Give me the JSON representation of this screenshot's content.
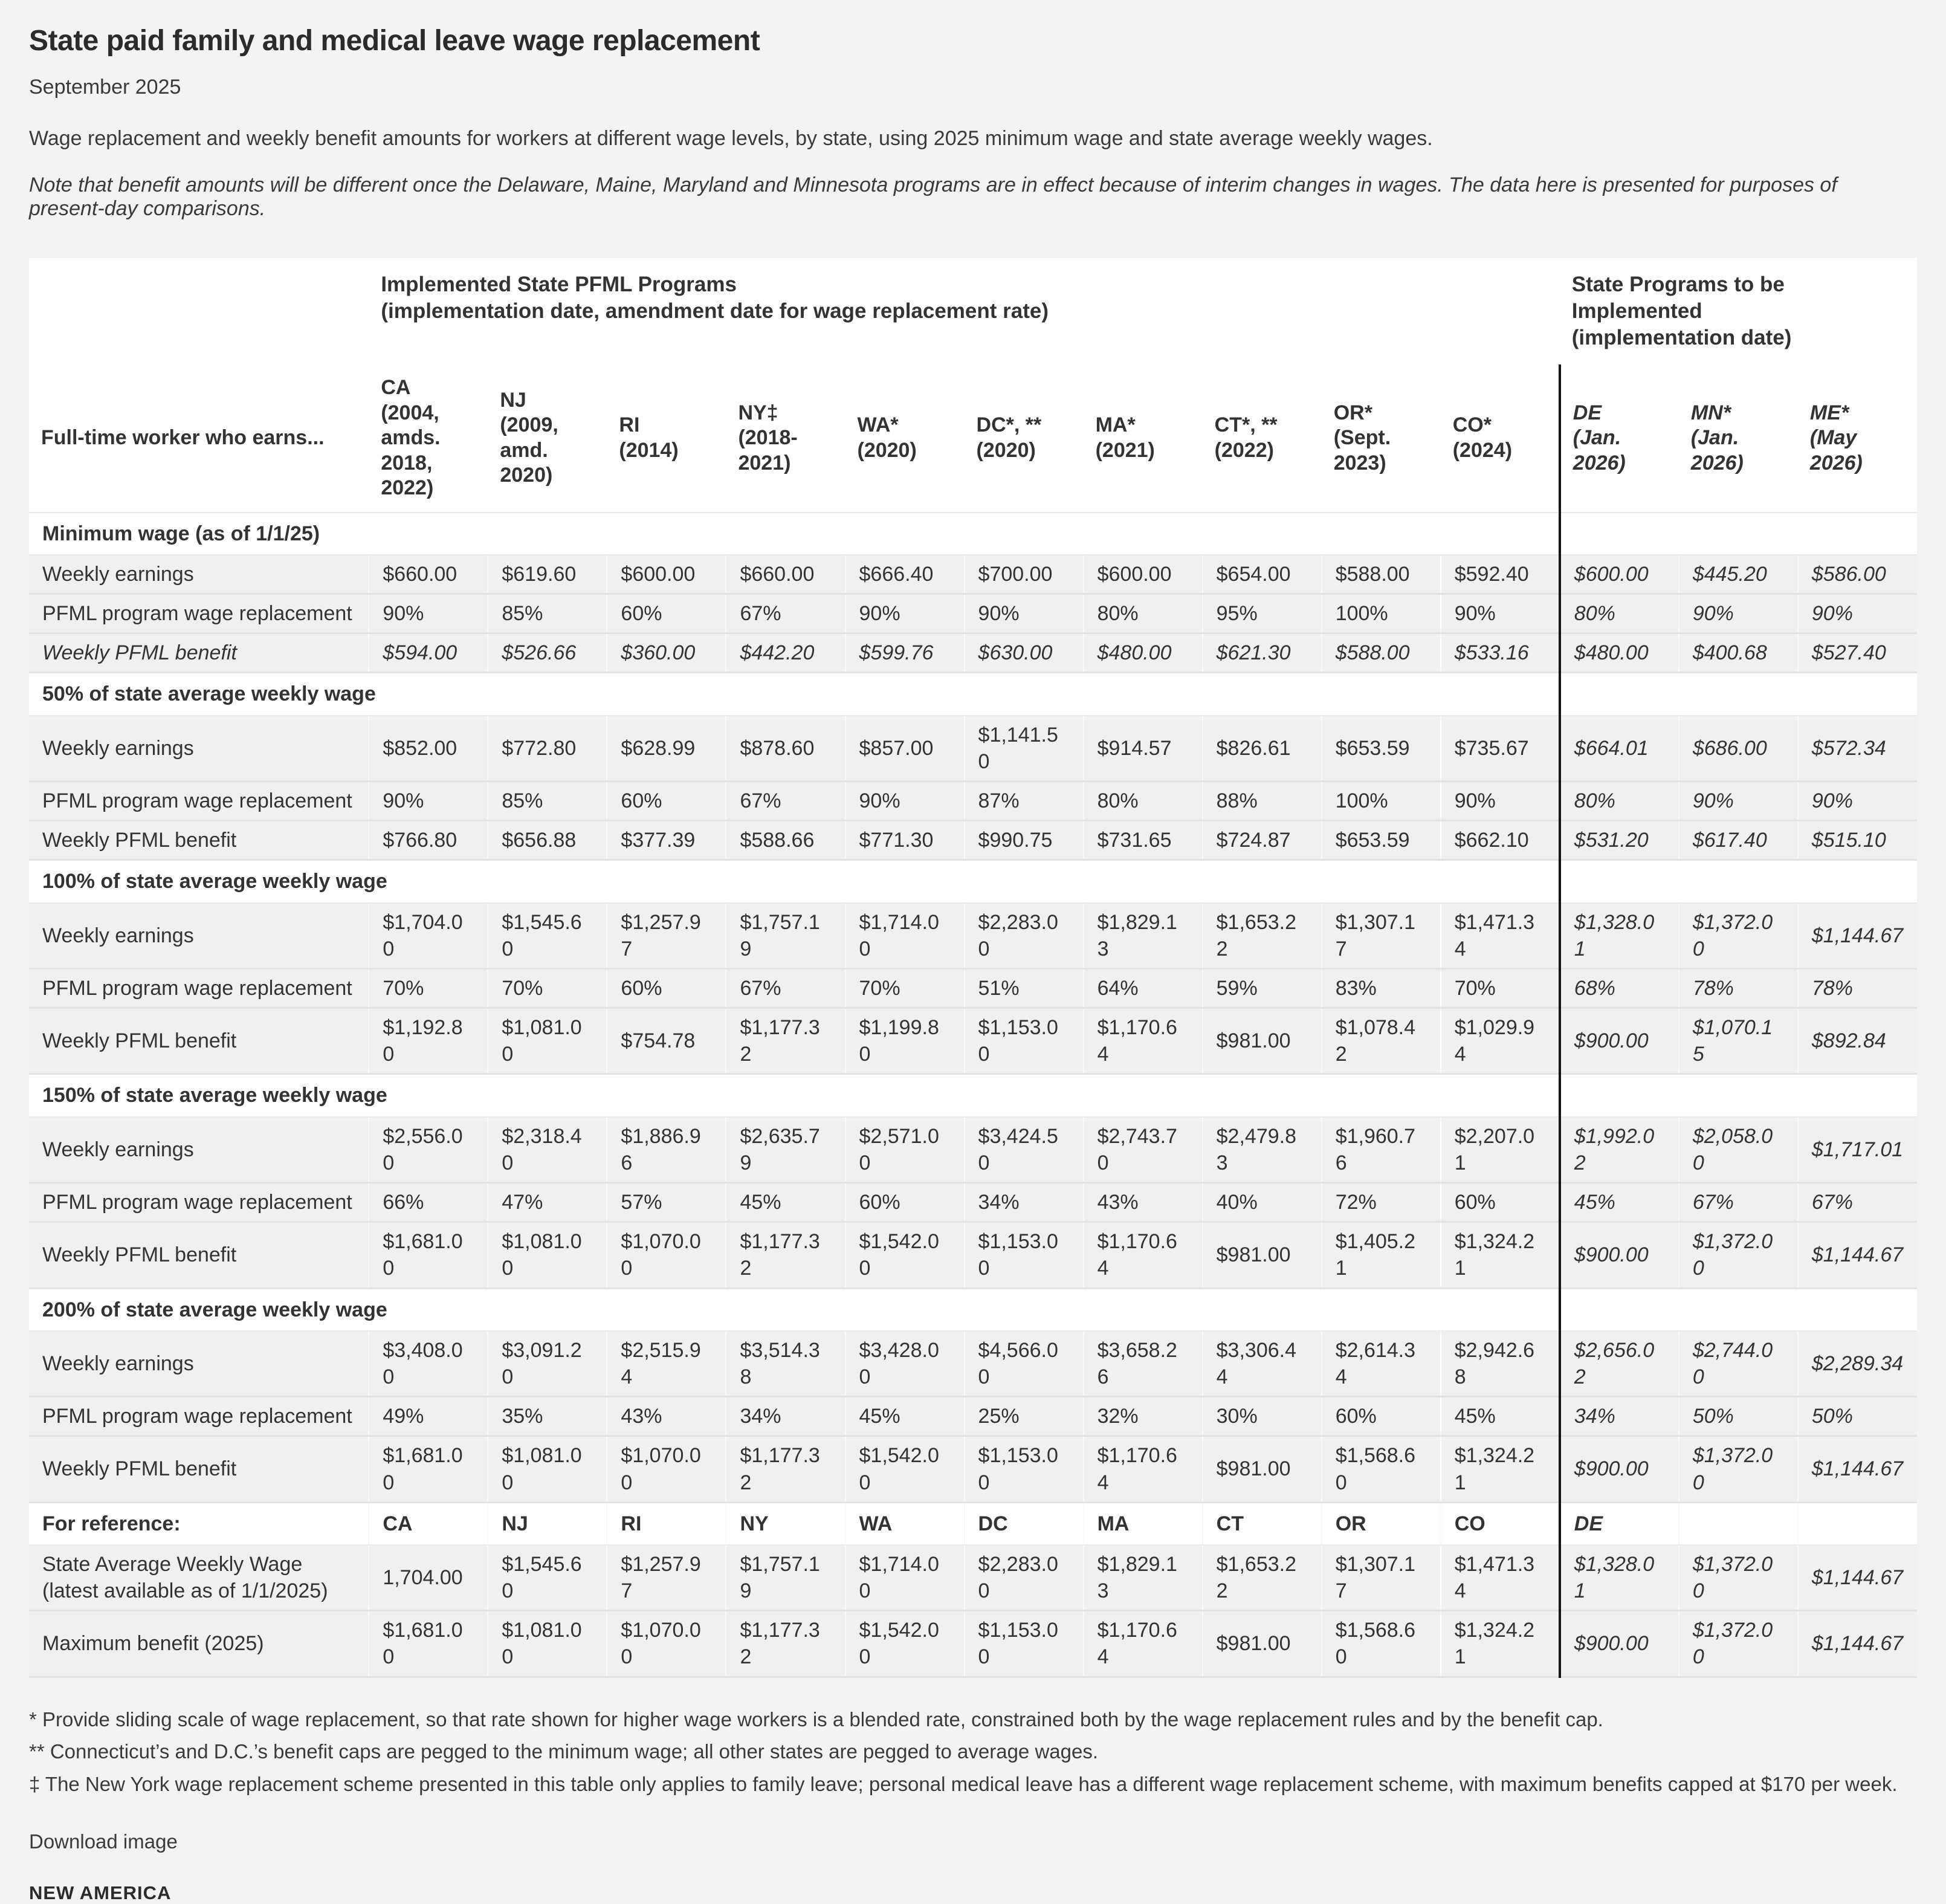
{
  "page": {
    "title": "State paid family and medical leave wage replacement",
    "date": "September 2025",
    "description": "Wage replacement and weekly benefit amounts for workers at different wage levels, by state, using 2025 minimum wage and state average weekly wages.",
    "note": "Note that benefit amounts will be different once the Delaware, Maine, Maryland and Minnesota programs are in effect because of interim changes in wages. The data here is presented for purposes of present-day comparisons.",
    "footnotes": [
      "* Provide sliding scale of wage replacement, so that rate shown for higher wage workers is a blended rate, constrained both by the wage replacement rules and by the benefit cap.",
      "** Connecticut’s and D.C.’s benefit caps are pegged to the minimum wage; all other states are pegged to average wages.",
      "‡ The New York wage replacement scheme presented in this table only applies to family leave; personal medical leave has a different wage replacement scheme, with maximum benefits capped at $170 per week."
    ],
    "download_label": "Download image",
    "brand": "NEW AMERICA"
  },
  "chart_data": {
    "type": "table",
    "title": "State paid family and medical leave wage replacement",
    "group_headers": {
      "implemented": "Implemented State PFML Programs\n(implementation date, amendment date for wage replacement rate)",
      "upcoming": "State Programs to be Implemented\n(implementation date)"
    },
    "row_header": "Full-time worker who earns...",
    "upcoming_start_index": 10,
    "columns": [
      "CA\n(2004, amds. 2018, 2022)",
      "NJ\n(2009, amd. 2020)",
      "RI\n(2014)",
      "NY‡\n(2018-2021)",
      "WA*\n(2020)",
      "DC*, **\n(2020)",
      "MA*\n(2021)",
      "CT*, **\n(2022)",
      "OR*\n(Sept. 2023)",
      "CO*\n(2024)",
      "DE\n(Jan. 2026)",
      "MN*\n(Jan. 2026)",
      "ME*\n(May 2026)"
    ],
    "sections": [
      {
        "title": "Minimum wage (as of 1/1/25)",
        "rows": [
          {
            "label": "Weekly earnings",
            "italic": false,
            "values": [
              "$660.00",
              "$619.60",
              "$600.00",
              "$660.00",
              "$666.40",
              "$700.00",
              "$600.00",
              "$654.00",
              "$588.00",
              "$592.40",
              "$600.00",
              "$445.20",
              "$586.00"
            ]
          },
          {
            "label": "PFML program wage replacement",
            "italic": false,
            "values": [
              "90%",
              "85%",
              "60%",
              "67%",
              "90%",
              "90%",
              "80%",
              "95%",
              "100%",
              "90%",
              "80%",
              "90%",
              "90%"
            ]
          },
          {
            "label": "Weekly PFML benefit",
            "italic": true,
            "values": [
              "$594.00",
              "$526.66",
              "$360.00",
              "$442.20",
              "$599.76",
              "$630.00",
              "$480.00",
              "$621.30",
              "$588.00",
              "$533.16",
              "$480.00",
              "$400.68",
              "$527.40"
            ]
          }
        ]
      },
      {
        "title": "50% of state average weekly wage",
        "rows": [
          {
            "label": "Weekly earnings",
            "italic": false,
            "values": [
              "$852.00",
              "$772.80",
              "$628.99",
              "$878.60",
              "$857.00",
              "$1,141.50",
              "$914.57",
              "$826.61",
              "$653.59",
              "$735.67",
              "$664.01",
              "$686.00",
              "$572.34"
            ]
          },
          {
            "label": "PFML program wage replacement",
            "italic": false,
            "values": [
              "90%",
              "85%",
              "60%",
              "67%",
              "90%",
              "87%",
              "80%",
              "88%",
              "100%",
              "90%",
              "80%",
              "90%",
              "90%"
            ]
          },
          {
            "label": "Weekly PFML benefit",
            "italic": false,
            "values": [
              "$766.80",
              "$656.88",
              "$377.39",
              "$588.66",
              "$771.30",
              "$990.75",
              "$731.65",
              "$724.87",
              "$653.59",
              "$662.10",
              "$531.20",
              "$617.40",
              "$515.10"
            ]
          }
        ]
      },
      {
        "title": "100% of state average weekly wage",
        "rows": [
          {
            "label": "Weekly earnings",
            "italic": false,
            "values": [
              "$1,704.00",
              "$1,545.60",
              "$1,257.97",
              "$1,757.19",
              "$1,714.00",
              "$2,283.00",
              "$1,829.13",
              "$1,653.22",
              "$1,307.17",
              "$1,471.34",
              "$1,328.01",
              "$1,372.00",
              "$1,144.67"
            ]
          },
          {
            "label": "PFML program wage replacement",
            "italic": false,
            "values": [
              "70%",
              "70%",
              "60%",
              "67%",
              "70%",
              "51%",
              "64%",
              "59%",
              "83%",
              "70%",
              "68%",
              "78%",
              "78%"
            ]
          },
          {
            "label": "Weekly PFML benefit",
            "italic": false,
            "values": [
              "$1,192.80",
              "$1,081.00",
              "$754.78",
              "$1,177.32",
              "$1,199.80",
              "$1,153.00",
              "$1,170.64",
              "$981.00",
              "$1,078.42",
              "$1,029.94",
              "$900.00",
              "$1,070.15",
              "$892.84"
            ]
          }
        ]
      },
      {
        "title": "150% of state average weekly wage",
        "rows": [
          {
            "label": "Weekly earnings",
            "italic": false,
            "values": [
              "$2,556.00",
              "$2,318.40",
              "$1,886.96",
              "$2,635.79",
              "$2,571.00",
              "$3,424.50",
              "$2,743.70",
              "$2,479.83",
              "$1,960.76",
              "$2,207.01",
              "$1,992.02",
              "$2,058.00",
              "$1,717.01"
            ]
          },
          {
            "label": "PFML program wage replacement",
            "italic": false,
            "values": [
              "66%",
              "47%",
              "57%",
              "45%",
              "60%",
              "34%",
              "43%",
              "40%",
              "72%",
              "60%",
              "45%",
              "67%",
              "67%"
            ]
          },
          {
            "label": "Weekly PFML benefit",
            "italic": false,
            "values": [
              "$1,681.00",
              "$1,081.00",
              "$1,070.00",
              "$1,177.32",
              "$1,542.00",
              "$1,153.00",
              "$1,170.64",
              "$981.00",
              "$1,405.21",
              "$1,324.21",
              "$900.00",
              "$1,372.00",
              "$1,144.67"
            ]
          }
        ]
      },
      {
        "title": "200% of state average weekly wage",
        "rows": [
          {
            "label": "Weekly earnings",
            "italic": false,
            "values": [
              "$3,408.00",
              "$3,091.20",
              "$2,515.94",
              "$3,514.38",
              "$3,428.00",
              "$4,566.00",
              "$3,658.26",
              "$3,306.44",
              "$2,614.34",
              "$2,942.68",
              "$2,656.02",
              "$2,744.00",
              "$2,289.34"
            ]
          },
          {
            "label": "PFML program wage replacement",
            "italic": false,
            "values": [
              "49%",
              "35%",
              "43%",
              "34%",
              "45%",
              "25%",
              "32%",
              "30%",
              "60%",
              "45%",
              "34%",
              "50%",
              "50%"
            ]
          },
          {
            "label": "Weekly PFML benefit",
            "italic": false,
            "values": [
              "$1,681.00",
              "$1,081.00",
              "$1,070.00",
              "$1,177.32",
              "$1,542.00",
              "$1,153.00",
              "$1,170.64",
              "$981.00",
              "$1,568.60",
              "$1,324.21",
              "$900.00",
              "$1,372.00",
              "$1,144.67"
            ]
          }
        ]
      }
    ],
    "reference": {
      "title": "For reference:",
      "state_abbrs": [
        "CA",
        "NJ",
        "RI",
        "NY",
        "WA",
        "DC",
        "MA",
        "CT",
        "OR",
        "CO",
        "DE",
        "",
        ""
      ],
      "rows": [
        {
          "label": "State Average Weekly Wage (latest available as of 1/1/2025)",
          "values": [
            "1,704.00",
            "$1,545.60",
            "$1,257.97",
            "$1,757.19",
            "$1,714.00",
            "$2,283.00",
            "$1,829.13",
            "$1,653.22",
            "$1,307.17",
            "$1,471.34",
            "$1,328.01",
            "$1,372.00",
            "$1,144.67"
          ]
        },
        {
          "label": "Maximum benefit (2025)",
          "values": [
            "$1,681.00",
            "$1,081.00",
            "$1,070.00",
            "$1,177.32",
            "$1,542.00",
            "$1,153.00",
            "$1,170.64",
            "$981.00",
            "$1,568.60",
            "$1,324.21",
            "$900.00",
            "$1,372.00",
            "$1,144.67"
          ]
        }
      ]
    }
  }
}
